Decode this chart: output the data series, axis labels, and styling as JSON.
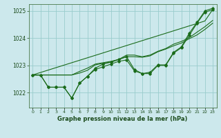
{
  "title": "Graphe pression niveau de la mer (hPa)",
  "background_color": "#cce8ec",
  "grid_color": "#99cccc",
  "line_color": "#1a6b1a",
  "ylim": [
    1021.45,
    1025.25
  ],
  "yticks": [
    1022,
    1023,
    1024,
    1025
  ],
  "n_hours": 24,
  "straight_line": [
    1022.65,
    1022.74,
    1022.83,
    1022.92,
    1023.01,
    1023.1,
    1023.19,
    1023.28,
    1023.37,
    1023.46,
    1023.55,
    1023.64,
    1023.73,
    1023.82,
    1023.91,
    1024.0,
    1024.09,
    1024.18,
    1024.27,
    1024.36,
    1024.45,
    1024.54,
    1024.63,
    1025.05
  ],
  "series_markers1": [
    1022.65,
    1022.65,
    1022.2,
    1022.2,
    1022.2,
    1021.8,
    1022.35,
    1022.6,
    1022.85,
    1022.95,
    1023.05,
    1023.15,
    1023.2,
    1022.8,
    1022.7,
    1022.7,
    1023.0,
    1023.0,
    1023.45,
    1023.65,
    1024.1,
    1024.55,
    1024.95,
    1025.05
  ],
  "series_smooth1": [
    1022.65,
    1022.65,
    1022.65,
    1022.65,
    1022.65,
    1022.65,
    1022.78,
    1022.9,
    1023.05,
    1023.1,
    1023.15,
    1023.22,
    1023.32,
    1023.32,
    1023.3,
    1023.35,
    1023.5,
    1023.6,
    1023.72,
    1023.82,
    1023.98,
    1024.12,
    1024.32,
    1024.55
  ],
  "series_markers2": [
    1022.65,
    1022.65,
    1022.2,
    1022.2,
    1022.2,
    1021.8,
    1022.35,
    1022.6,
    1022.9,
    1023.05,
    1023.12,
    1023.22,
    1023.32,
    1022.85,
    1022.7,
    1022.75,
    1023.02,
    1023.02,
    1023.48,
    1023.68,
    1024.18,
    1024.58,
    1025.0,
    1025.1
  ],
  "series_smooth2": [
    1022.65,
    1022.65,
    1022.65,
    1022.65,
    1022.65,
    1022.65,
    1022.72,
    1022.82,
    1023.02,
    1023.08,
    1023.12,
    1023.22,
    1023.38,
    1023.38,
    1023.32,
    1023.38,
    1023.52,
    1023.62,
    1023.78,
    1023.88,
    1024.02,
    1024.22,
    1024.42,
    1024.65
  ]
}
